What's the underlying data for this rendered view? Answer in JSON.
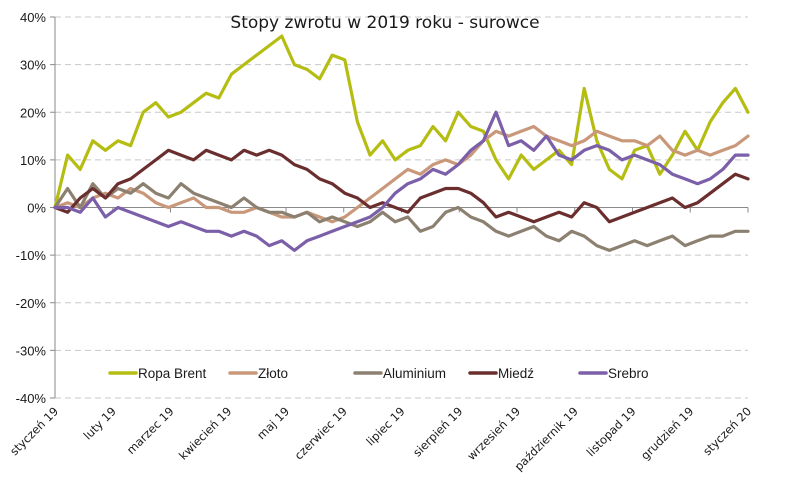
{
  "chart_data": {
    "type": "line",
    "title": "Stopy zwrotu w 2019 roku - surowce",
    "xlabel": "",
    "ylabel": "",
    "ylim": [
      -0.4,
      0.4
    ],
    "y_ticks": [
      0.4,
      0.3,
      0.2,
      0.1,
      0.0,
      -0.1,
      -0.2,
      -0.3,
      -0.4
    ],
    "y_tick_labels": [
      "40%",
      "30%",
      "20%",
      "10%",
      "0%",
      "-10%",
      "-20%",
      "-30%",
      "-40%"
    ],
    "x_tick_labels": [
      "styczeń 19",
      "luty 19",
      "marzec 19",
      "kwiecień 19",
      "maj 19",
      "czerwiec 19",
      "lipiec 19",
      "sierpień 19",
      "wrzesień 19",
      "październik 19",
      "listopad 19",
      "grudzień 19",
      "styczeń 20"
    ],
    "grid": "horizontal-dashed",
    "legend_position": "bottom-inside",
    "x_unit": "weeks since start (0-52)",
    "series": [
      {
        "name": "Ropa Brent",
        "color": "#b5bd12",
        "values": [
          0.0,
          0.11,
          0.08,
          0.14,
          0.12,
          0.14,
          0.13,
          0.2,
          0.22,
          0.19,
          0.2,
          0.22,
          0.24,
          0.23,
          0.28,
          0.3,
          0.32,
          0.34,
          0.36,
          0.3,
          0.29,
          0.27,
          0.32,
          0.31,
          0.18,
          0.11,
          0.14,
          0.1,
          0.12,
          0.13,
          0.17,
          0.14,
          0.2,
          0.17,
          0.16,
          0.1,
          0.06,
          0.11,
          0.08,
          0.1,
          0.12,
          0.09,
          0.25,
          0.14,
          0.08,
          0.06,
          0.12,
          0.13,
          0.07,
          0.11,
          0.16,
          0.12,
          0.18,
          0.22,
          0.25,
          0.2
        ]
      },
      {
        "name": "Złoto",
        "color": "#c9987a",
        "values": [
          0.0,
          0.01,
          0.0,
          0.02,
          0.03,
          0.02,
          0.04,
          0.03,
          0.01,
          0.0,
          0.01,
          0.02,
          0.0,
          0.0,
          -0.01,
          -0.01,
          0.0,
          -0.01,
          -0.02,
          -0.02,
          -0.01,
          -0.02,
          -0.03,
          -0.02,
          0.0,
          0.02,
          0.04,
          0.06,
          0.08,
          0.07,
          0.09,
          0.1,
          0.09,
          0.11,
          0.14,
          0.16,
          0.15,
          0.16,
          0.17,
          0.15,
          0.14,
          0.13,
          0.14,
          0.16,
          0.15,
          0.14,
          0.14,
          0.13,
          0.15,
          0.12,
          0.11,
          0.12,
          0.11,
          0.12,
          0.13,
          0.15
        ]
      },
      {
        "name": "Aluminium",
        "color": "#8c8070",
        "values": [
          0.0,
          0.04,
          0.0,
          0.05,
          0.02,
          0.04,
          0.03,
          0.05,
          0.03,
          0.02,
          0.05,
          0.03,
          0.02,
          0.01,
          0.0,
          0.02,
          0.0,
          -0.01,
          -0.01,
          -0.02,
          -0.01,
          -0.03,
          -0.02,
          -0.03,
          -0.04,
          -0.03,
          -0.01,
          -0.03,
          -0.02,
          -0.05,
          -0.04,
          -0.01,
          0.0,
          -0.02,
          -0.03,
          -0.05,
          -0.06,
          -0.05,
          -0.04,
          -0.06,
          -0.07,
          -0.05,
          -0.06,
          -0.08,
          -0.09,
          -0.08,
          -0.07,
          -0.08,
          -0.07,
          -0.06,
          -0.08,
          -0.07,
          -0.06,
          -0.06,
          -0.05,
          -0.05
        ]
      },
      {
        "name": "Miedź",
        "color": "#6b2e2e",
        "values": [
          0.0,
          -0.01,
          0.02,
          0.04,
          0.02,
          0.05,
          0.06,
          0.08,
          0.1,
          0.12,
          0.11,
          0.1,
          0.12,
          0.11,
          0.1,
          0.12,
          0.11,
          0.12,
          0.11,
          0.09,
          0.08,
          0.06,
          0.05,
          0.03,
          0.02,
          0.0,
          0.01,
          0.0,
          -0.01,
          0.02,
          0.03,
          0.04,
          0.04,
          0.03,
          0.01,
          -0.02,
          -0.01,
          -0.02,
          -0.03,
          -0.02,
          -0.01,
          -0.02,
          0.01,
          0.0,
          -0.03,
          -0.02,
          -0.01,
          0.0,
          0.01,
          0.02,
          0.0,
          0.01,
          0.03,
          0.05,
          0.07,
          0.06
        ]
      },
      {
        "name": "Srebro",
        "color": "#7b5fa8",
        "values": [
          0.0,
          0.0,
          -0.01,
          0.02,
          -0.02,
          0.0,
          -0.01,
          -0.02,
          -0.03,
          -0.04,
          -0.03,
          -0.04,
          -0.05,
          -0.05,
          -0.06,
          -0.05,
          -0.06,
          -0.08,
          -0.07,
          -0.09,
          -0.07,
          -0.06,
          -0.05,
          -0.04,
          -0.03,
          -0.02,
          0.0,
          0.03,
          0.05,
          0.06,
          0.08,
          0.07,
          0.09,
          0.12,
          0.14,
          0.2,
          0.13,
          0.14,
          0.12,
          0.15,
          0.11,
          0.1,
          0.12,
          0.13,
          0.12,
          0.1,
          0.11,
          0.1,
          0.09,
          0.07,
          0.06,
          0.05,
          0.06,
          0.08,
          0.11,
          0.11
        ]
      }
    ]
  }
}
